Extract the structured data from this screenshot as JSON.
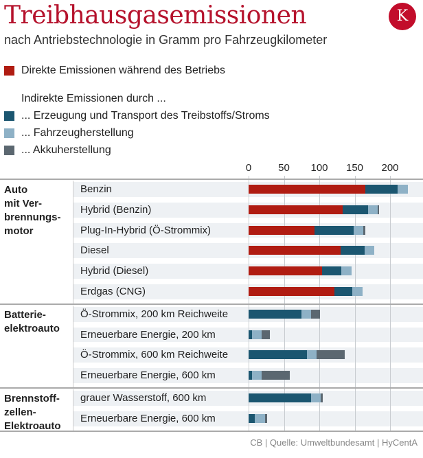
{
  "header": {
    "title": "Treibhausgasemissionen",
    "subtitle": "nach Antriebstechnologie in Gramm pro Fahrzeugkilometer",
    "logo": "K"
  },
  "legend": {
    "direct": "Direkte Emissionen während des Betriebs",
    "indirect_heading": "Indirekte Emissionen durch ...",
    "items": [
      "... Erzeugung und Transport des Treibstoffs/Stroms",
      "... Fahrzeugherstellung",
      "... Akkuherstellung"
    ]
  },
  "source": "CB | Quelle: Umweltbundesamt | HyCentA",
  "colors": {
    "direct": "#b01c12",
    "fuel": "#1b5670",
    "vehicle": "#8eb1c6",
    "battery": "#5b6770"
  },
  "chart_data": {
    "type": "bar",
    "orientation": "horizontal",
    "stacked": true,
    "xlim": [
      0,
      230
    ],
    "xticks": [
      "0",
      "50",
      "100",
      "150",
      "200"
    ],
    "grid": true,
    "series": [
      {
        "name": "Direkte Emissionen während des Betriebs",
        "key": "direct"
      },
      {
        "name": "... Erzeugung und Transport des Treibstoffs/Stroms",
        "key": "fuel"
      },
      {
        "name": "... Fahrzeugherstellung",
        "key": "vehicle"
      },
      {
        "name": "... Akkuherstellung",
        "key": "battery"
      }
    ],
    "groups": [
      {
        "label": "Auto\nmit Ver-\nbrennungs-\nmotor",
        "rows": [
          {
            "label": "Benzin",
            "values": [
              165,
              46,
              14,
              0
            ]
          },
          {
            "label": "Hybrid (Benzin)",
            "values": [
              133,
              36,
              14,
              1
            ]
          },
          {
            "label": "Plug-In-Hybrid (Ö-Strommix)",
            "values": [
              93,
              56,
              13,
              3
            ]
          },
          {
            "label": "Diesel",
            "values": [
              130,
              34,
              14,
              0
            ]
          },
          {
            "label": "Hybrid (Diesel)",
            "values": [
              104,
              27,
              15,
              0
            ]
          },
          {
            "label": "Erdgas (CNG)",
            "values": [
              121,
              26,
              14,
              0
            ]
          }
        ]
      },
      {
        "label": "Batterie-\nelektroauto",
        "rows": [
          {
            "label": "Ö-Strommix, 200 km Reichweite",
            "values": [
              0,
              75,
              13,
              13
            ]
          },
          {
            "label": "Erneuerbare Energie, 200 km",
            "values": [
              0,
              5,
              13,
              12
            ]
          },
          {
            "label": "Ö-Strommix, 600 km Reichweite",
            "values": [
              0,
              83,
              13,
              40
            ]
          },
          {
            "label": "Erneuerbare Energie, 600 km",
            "values": [
              0,
              5,
              13,
              40
            ]
          }
        ]
      },
      {
        "label": "Brennstoff-\nzellen-\nElektroauto",
        "rows": [
          {
            "label": "grauer Wasserstoff, 600 km",
            "values": [
              0,
              88,
              14,
              3
            ]
          },
          {
            "label": "Erneuerbare Energie, 600 km",
            "values": [
              0,
              9,
              14,
              3
            ]
          }
        ]
      }
    ]
  }
}
